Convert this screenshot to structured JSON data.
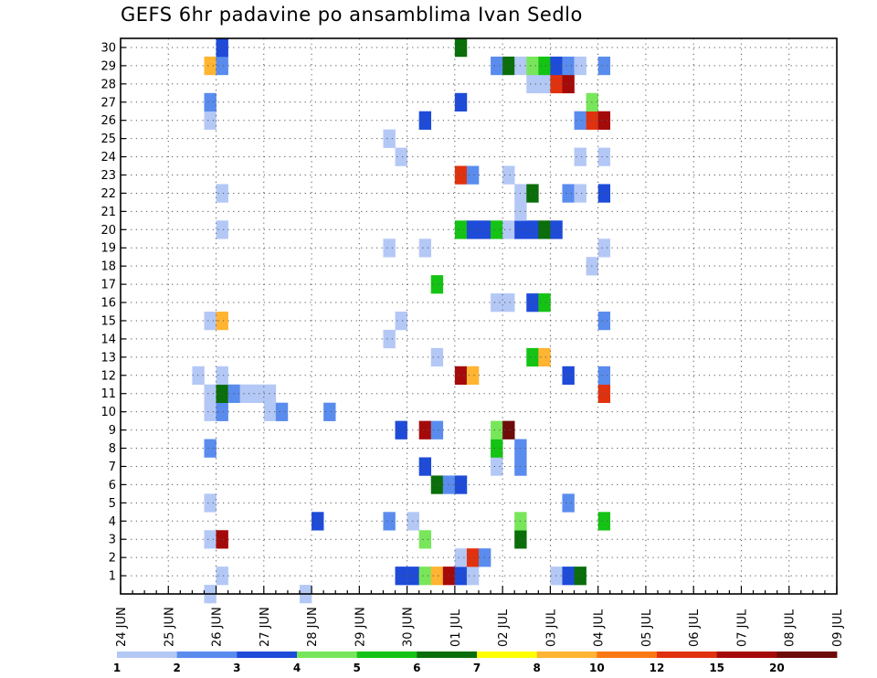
{
  "chart_data": {
    "type": "heatmap",
    "title": "GEFS 6hr padavine po ansamblima Ivan Sedlo",
    "xlabel": "",
    "ylabel": "",
    "x_tick_labels": [
      "24 JUN",
      "25 JUN",
      "26 JUN",
      "27 JUN",
      "28 JUN",
      "29 JUN",
      "30 JUN",
      "01 JUL",
      "02 JUL",
      "03 JUL",
      "04 JUL",
      "05 JUL",
      "06 JUL",
      "07 JUL",
      "08 JUL",
      "09 JUL"
    ],
    "y_tick_labels": [
      "1",
      "2",
      "3",
      "4",
      "5",
      "6",
      "7",
      "8",
      "9",
      "10",
      "11",
      "12",
      "13",
      "14",
      "15",
      "16",
      "17",
      "18",
      "19",
      "20",
      "21",
      "22",
      "23",
      "24",
      "25",
      "26",
      "27",
      "28",
      "29",
      "30"
    ],
    "y_range": [
      0,
      30
    ],
    "x_range_steps": [
      0,
      60
    ],
    "step_hours": 6,
    "grid": true,
    "legend": {
      "placement": "bottom",
      "levels": [
        "1",
        "2",
        "3",
        "4",
        "5",
        "6",
        "7",
        "8",
        "10",
        "12",
        "15",
        "20"
      ],
      "colors": [
        "#b4c8f6",
        "#5a8cee",
        "#1e4bd8",
        "#78e65a",
        "#14c314",
        "#0a6e0a",
        "#ffff00",
        "#ffb432",
        "#fa7814",
        "#e1320f",
        "#a50a0a",
        "#6e0a0a"
      ]
    },
    "cells": [
      {
        "step": 7,
        "member": 0,
        "level": 1
      },
      {
        "step": 15,
        "member": 0,
        "level": 1
      },
      {
        "step": 8,
        "member": 1,
        "level": 1
      },
      {
        "step": 23,
        "member": 1,
        "level": 3
      },
      {
        "step": 24,
        "member": 1,
        "level": 3
      },
      {
        "step": 25,
        "member": 1,
        "level": 4
      },
      {
        "step": 26,
        "member": 1,
        "level": 8
      },
      {
        "step": 27,
        "member": 1,
        "level": 11
      },
      {
        "step": 28,
        "member": 1,
        "level": 3
      },
      {
        "step": 29,
        "member": 1,
        "level": 1
      },
      {
        "step": 36,
        "member": 1,
        "level": 1
      },
      {
        "step": 37,
        "member": 1,
        "level": 3
      },
      {
        "step": 38,
        "member": 1,
        "level": 6
      },
      {
        "step": 28,
        "member": 2,
        "level": 1
      },
      {
        "step": 29,
        "member": 2,
        "level": 10
      },
      {
        "step": 30,
        "member": 2,
        "level": 2
      },
      {
        "step": 7,
        "member": 3,
        "level": 1
      },
      {
        "step": 8,
        "member": 3,
        "level": 11
      },
      {
        "step": 25,
        "member": 3,
        "level": 4
      },
      {
        "step": 33,
        "member": 3,
        "level": 6
      },
      {
        "step": 16,
        "member": 4,
        "level": 3
      },
      {
        "step": 22,
        "member": 4,
        "level": 2
      },
      {
        "step": 24,
        "member": 4,
        "level": 1
      },
      {
        "step": 33,
        "member": 4,
        "level": 4
      },
      {
        "step": 40,
        "member": 4,
        "level": 5
      },
      {
        "step": 7,
        "member": 5,
        "level": 1
      },
      {
        "step": 37,
        "member": 5,
        "level": 2
      },
      {
        "step": 26,
        "member": 6,
        "level": 6
      },
      {
        "step": 27,
        "member": 6,
        "level": 2
      },
      {
        "step": 28,
        "member": 6,
        "level": 3
      },
      {
        "step": 25,
        "member": 7,
        "level": 3
      },
      {
        "step": 31,
        "member": 7,
        "level": 1
      },
      {
        "step": 33,
        "member": 7,
        "level": 2
      },
      {
        "step": 7,
        "member": 8,
        "level": 2
      },
      {
        "step": 31,
        "member": 8,
        "level": 5
      },
      {
        "step": 33,
        "member": 8,
        "level": 2
      },
      {
        "step": 23,
        "member": 9,
        "level": 3
      },
      {
        "step": 25,
        "member": 9,
        "level": 11
      },
      {
        "step": 26,
        "member": 9,
        "level": 2
      },
      {
        "step": 31,
        "member": 9,
        "level": 4
      },
      {
        "step": 32,
        "member": 9,
        "level": 12
      },
      {
        "step": 7,
        "member": 10,
        "level": 1
      },
      {
        "step": 8,
        "member": 10,
        "level": 2
      },
      {
        "step": 12,
        "member": 10,
        "level": 1
      },
      {
        "step": 13,
        "member": 10,
        "level": 2
      },
      {
        "step": 17,
        "member": 10,
        "level": 2
      },
      {
        "step": 7,
        "member": 11,
        "level": 1
      },
      {
        "step": 8,
        "member": 11,
        "level": 6
      },
      {
        "step": 9,
        "member": 11,
        "level": 2
      },
      {
        "step": 10,
        "member": 11,
        "level": 1
      },
      {
        "step": 11,
        "member": 11,
        "level": 1
      },
      {
        "step": 12,
        "member": 11,
        "level": 1
      },
      {
        "step": 40,
        "member": 11,
        "level": 10
      },
      {
        "step": 6,
        "member": 12,
        "level": 1
      },
      {
        "step": 8,
        "member": 12,
        "level": 1
      },
      {
        "step": 28,
        "member": 12,
        "level": 11
      },
      {
        "step": 29,
        "member": 12,
        "level": 8
      },
      {
        "step": 37,
        "member": 12,
        "level": 3
      },
      {
        "step": 40,
        "member": 12,
        "level": 2
      },
      {
        "step": 26,
        "member": 13,
        "level": 1
      },
      {
        "step": 34,
        "member": 13,
        "level": 5
      },
      {
        "step": 35,
        "member": 13,
        "level": 8
      },
      {
        "step": 22,
        "member": 14,
        "level": 1
      },
      {
        "step": 7,
        "member": 15,
        "level": 1
      },
      {
        "step": 8,
        "member": 15,
        "level": 8
      },
      {
        "step": 23,
        "member": 15,
        "level": 1
      },
      {
        "step": 40,
        "member": 15,
        "level": 2
      },
      {
        "step": 31,
        "member": 16,
        "level": 1
      },
      {
        "step": 32,
        "member": 16,
        "level": 1
      },
      {
        "step": 34,
        "member": 16,
        "level": 3
      },
      {
        "step": 35,
        "member": 16,
        "level": 5
      },
      {
        "step": 26,
        "member": 17,
        "level": 5
      },
      {
        "step": 39,
        "member": 18,
        "level": 1
      },
      {
        "step": 22,
        "member": 19,
        "level": 1
      },
      {
        "step": 25,
        "member": 19,
        "level": 1
      },
      {
        "step": 40,
        "member": 19,
        "level": 1
      },
      {
        "step": 8,
        "member": 20,
        "level": 1
      },
      {
        "step": 28,
        "member": 20,
        "level": 5
      },
      {
        "step": 29,
        "member": 20,
        "level": 3
      },
      {
        "step": 30,
        "member": 20,
        "level": 3
      },
      {
        "step": 31,
        "member": 20,
        "level": 5
      },
      {
        "step": 32,
        "member": 20,
        "level": 1
      },
      {
        "step": 33,
        "member": 20,
        "level": 3
      },
      {
        "step": 34,
        "member": 20,
        "level": 3
      },
      {
        "step": 35,
        "member": 20,
        "level": 6
      },
      {
        "step": 36,
        "member": 20,
        "level": 3
      },
      {
        "step": 33,
        "member": 21,
        "level": 1
      },
      {
        "step": 8,
        "member": 22,
        "level": 1
      },
      {
        "step": 33,
        "member": 22,
        "level": 1
      },
      {
        "step": 34,
        "member": 22,
        "level": 6
      },
      {
        "step": 37,
        "member": 22,
        "level": 2
      },
      {
        "step": 38,
        "member": 22,
        "level": 1
      },
      {
        "step": 40,
        "member": 22,
        "level": 3
      },
      {
        "step": 28,
        "member": 23,
        "level": 10
      },
      {
        "step": 29,
        "member": 23,
        "level": 2
      },
      {
        "step": 32,
        "member": 23,
        "level": 1
      },
      {
        "step": 23,
        "member": 24,
        "level": 1
      },
      {
        "step": 38,
        "member": 24,
        "level": 1
      },
      {
        "step": 40,
        "member": 24,
        "level": 1
      },
      {
        "step": 22,
        "member": 25,
        "level": 1
      },
      {
        "step": 7,
        "member": 26,
        "level": 1
      },
      {
        "step": 25,
        "member": 26,
        "level": 3
      },
      {
        "step": 38,
        "member": 26,
        "level": 2
      },
      {
        "step": 39,
        "member": 26,
        "level": 10
      },
      {
        "step": 40,
        "member": 26,
        "level": 11
      },
      {
        "step": 7,
        "member": 27,
        "level": 2
      },
      {
        "step": 28,
        "member": 27,
        "level": 3
      },
      {
        "step": 39,
        "member": 27,
        "level": 4
      },
      {
        "step": 34,
        "member": 28,
        "level": 1
      },
      {
        "step": 35,
        "member": 28,
        "level": 1
      },
      {
        "step": 36,
        "member": 28,
        "level": 10
      },
      {
        "step": 37,
        "member": 28,
        "level": 11
      },
      {
        "step": 7,
        "member": 29,
        "level": 8
      },
      {
        "step": 8,
        "member": 29,
        "level": 2
      },
      {
        "step": 31,
        "member": 29,
        "level": 2
      },
      {
        "step": 32,
        "member": 29,
        "level": 6
      },
      {
        "step": 33,
        "member": 29,
        "level": 1
      },
      {
        "step": 34,
        "member": 29,
        "level": 4
      },
      {
        "step": 35,
        "member": 29,
        "level": 5
      },
      {
        "step": 36,
        "member": 29,
        "level": 3
      },
      {
        "step": 37,
        "member": 29,
        "level": 2
      },
      {
        "step": 38,
        "member": 29,
        "level": 1
      },
      {
        "step": 40,
        "member": 29,
        "level": 2
      },
      {
        "step": 8,
        "member": 30,
        "level": 3
      },
      {
        "step": 28,
        "member": 30,
        "level": 6
      }
    ]
  }
}
